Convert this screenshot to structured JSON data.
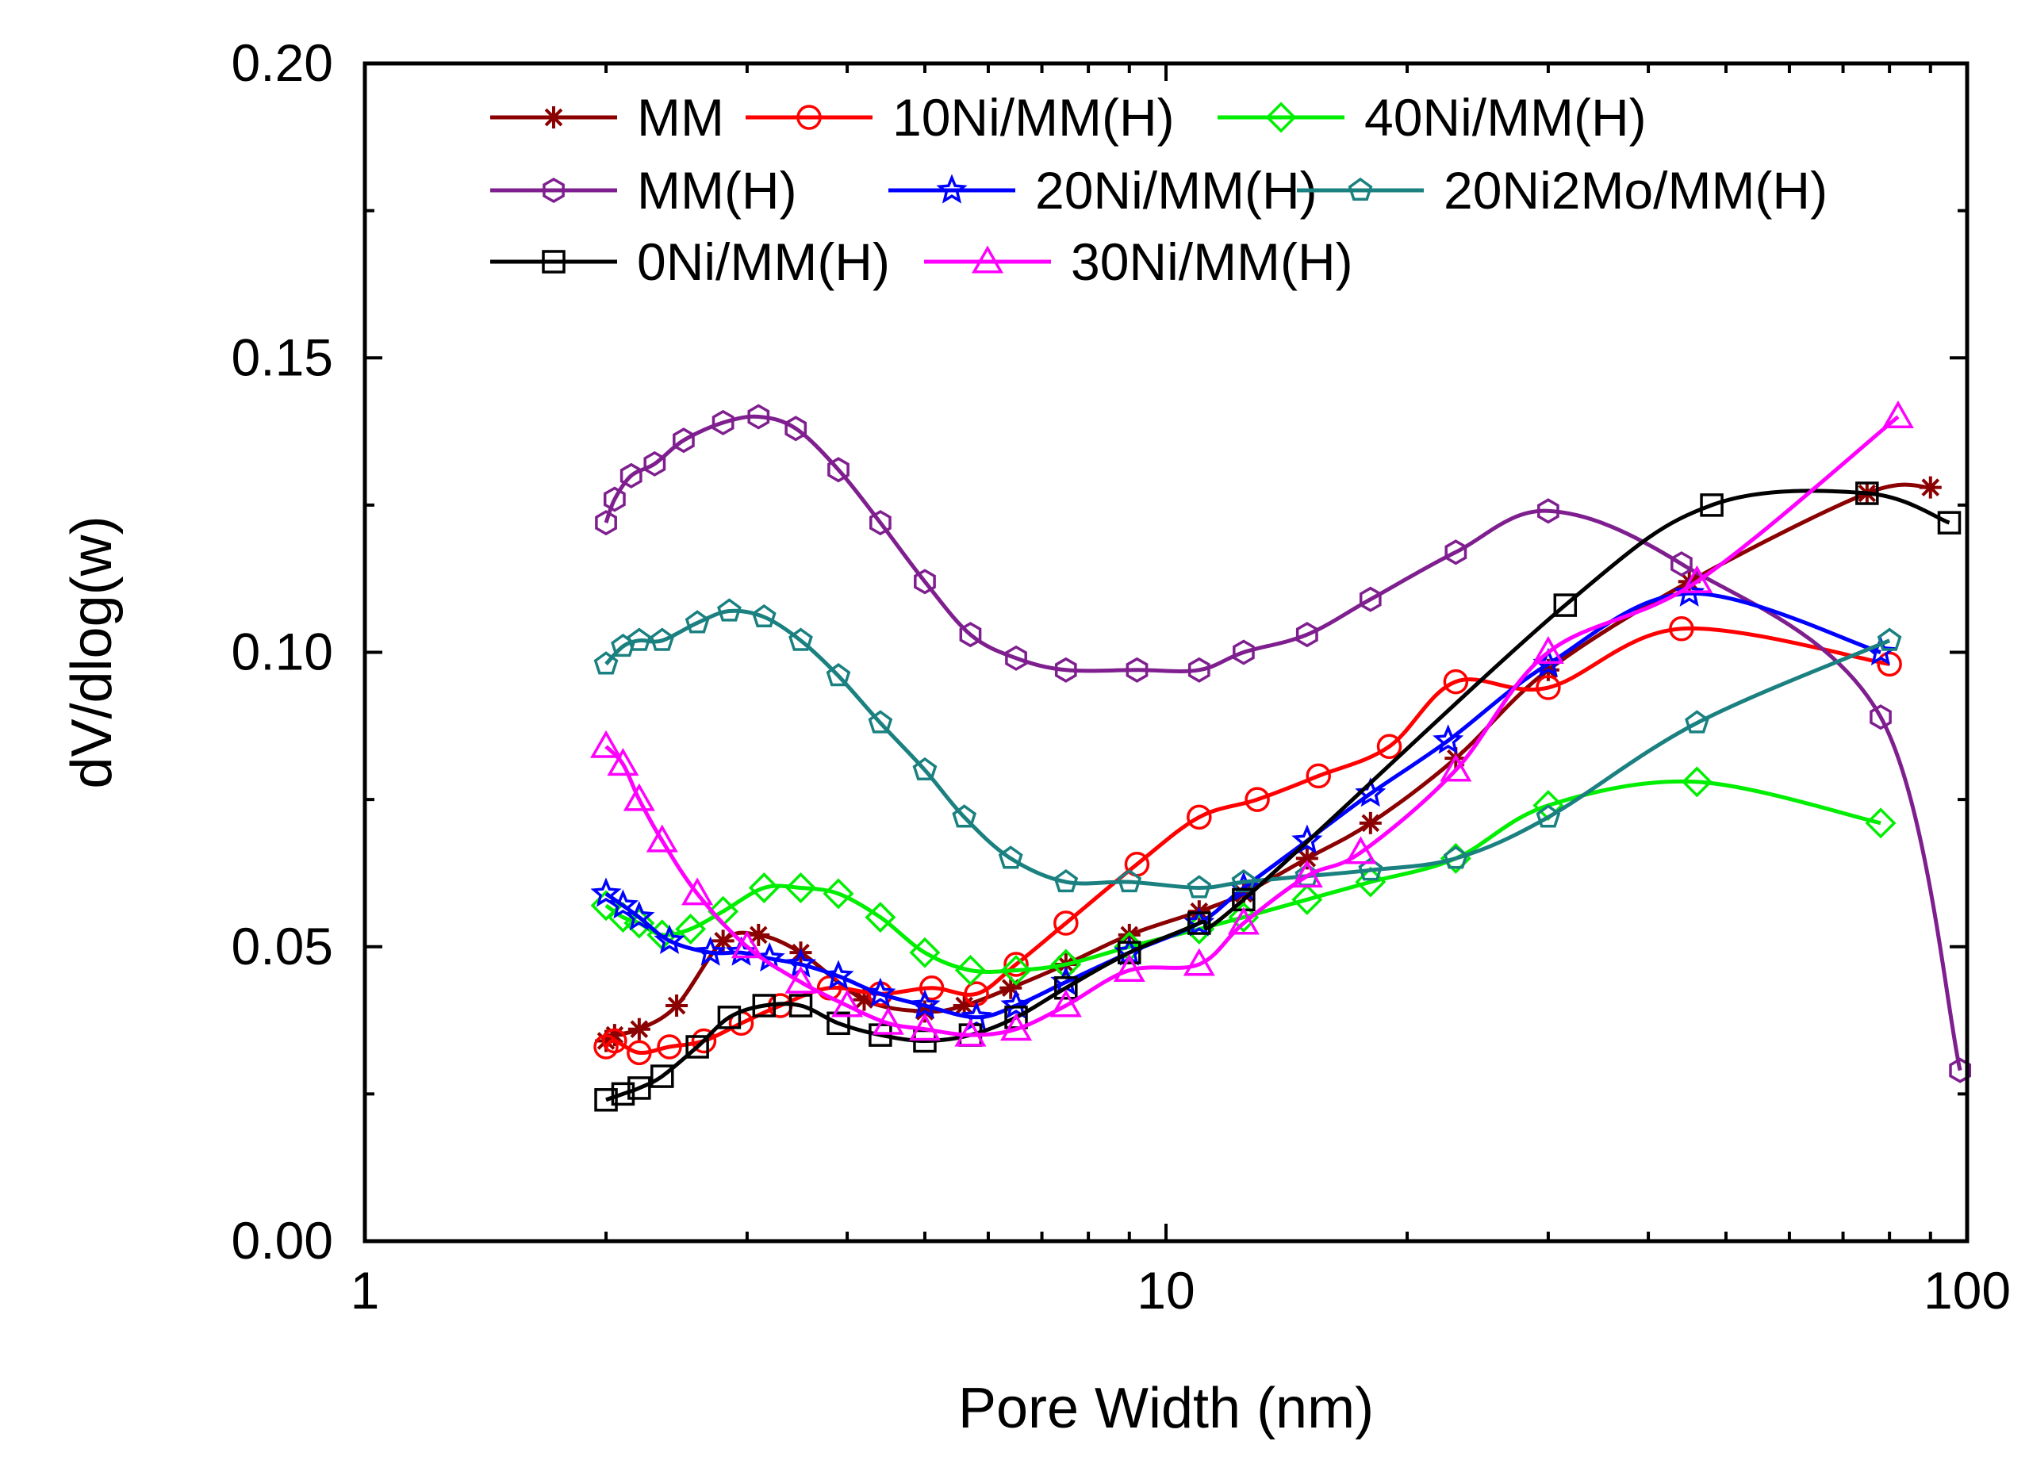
{
  "chart_data": {
    "type": "line",
    "title": "",
    "xlabel": "Pore Width (nm)",
    "ylabel": "dV/dlog(w)",
    "xscale": "log",
    "xlim": [
      1,
      100
    ],
    "ylim": [
      0,
      0.2
    ],
    "x_ticks": [
      "1",
      "10",
      "100"
    ],
    "y_ticks": [
      "0.00",
      "0.05",
      "0.10",
      "0.15",
      "0.20"
    ],
    "grid": false,
    "legend_position": "top",
    "series": [
      {
        "name": "MM",
        "color": "#8B0000",
        "marker": "asterisk",
        "x": [
          2.0,
          2.05,
          2.2,
          2.45,
          2.8,
          3.1,
          3.5,
          4.2,
          5.0,
          5.6,
          6.4,
          7.5,
          9.0,
          11.0,
          12.5,
          15.0,
          18.0,
          23.0,
          30.0,
          45.0,
          75.0,
          90.0
        ],
        "y": [
          0.034,
          0.035,
          0.036,
          0.04,
          0.051,
          0.052,
          0.049,
          0.041,
          0.039,
          0.04,
          0.043,
          0.047,
          0.052,
          0.056,
          0.059,
          0.065,
          0.071,
          0.082,
          0.097,
          0.112,
          0.127,
          0.128
        ]
      },
      {
        "name": "10Ni/MM(H)",
        "color": "#FF0000",
        "marker": "circle",
        "x": [
          2.0,
          2.05,
          2.2,
          2.4,
          2.65,
          2.95,
          3.3,
          3.8,
          4.4,
          5.1,
          5.8,
          6.5,
          7.5,
          9.2,
          11.0,
          13.0,
          15.5,
          19.0,
          23.0,
          30.0,
          44.0,
          80.0
        ],
        "y": [
          0.033,
          0.034,
          0.032,
          0.033,
          0.034,
          0.037,
          0.04,
          0.043,
          0.042,
          0.043,
          0.042,
          0.047,
          0.054,
          0.064,
          0.072,
          0.075,
          0.079,
          0.084,
          0.095,
          0.094,
          0.104,
          0.098
        ]
      },
      {
        "name": "40Ni/MM(H)",
        "color": "#00EE00",
        "marker": "diamond",
        "x": [
          2.0,
          2.1,
          2.2,
          2.35,
          2.55,
          2.8,
          3.15,
          3.5,
          3.9,
          4.4,
          5.0,
          5.7,
          6.5,
          7.5,
          9.0,
          11.0,
          12.5,
          15.0,
          18.0,
          23.0,
          30.0,
          46.0,
          78.0
        ],
        "y": [
          0.057,
          0.055,
          0.054,
          0.052,
          0.053,
          0.056,
          0.06,
          0.06,
          0.059,
          0.055,
          0.049,
          0.046,
          0.046,
          0.047,
          0.05,
          0.053,
          0.055,
          0.058,
          0.061,
          0.065,
          0.074,
          0.078,
          0.071
        ]
      },
      {
        "name": "MM(H)",
        "color": "#7F1F8F",
        "marker": "hexagon",
        "x": [
          2.0,
          2.05,
          2.15,
          2.3,
          2.5,
          2.8,
          3.1,
          3.45,
          3.9,
          4.4,
          5.0,
          5.7,
          6.5,
          7.5,
          9.2,
          11.0,
          12.5,
          15.0,
          18.0,
          23.0,
          30.0,
          44.0,
          78.0,
          98.0
        ],
        "y": [
          0.122,
          0.126,
          0.13,
          0.132,
          0.136,
          0.139,
          0.14,
          0.138,
          0.131,
          0.122,
          0.112,
          0.103,
          0.099,
          0.097,
          0.097,
          0.097,
          0.1,
          0.103,
          0.109,
          0.117,
          0.124,
          0.115,
          0.089,
          0.029
        ]
      },
      {
        "name": "20Ni/MM(H)",
        "color": "#0000FF",
        "marker": "star",
        "x": [
          2.0,
          2.1,
          2.2,
          2.4,
          2.7,
          2.95,
          3.2,
          3.5,
          3.9,
          4.4,
          5.0,
          5.8,
          6.5,
          7.5,
          9.0,
          11.0,
          12.5,
          15.0,
          18.0,
          22.5,
          30.0,
          45.0,
          78.0
        ],
        "y": [
          0.059,
          0.057,
          0.055,
          0.051,
          0.049,
          0.049,
          0.048,
          0.047,
          0.045,
          0.042,
          0.04,
          0.038,
          0.04,
          0.044,
          0.049,
          0.054,
          0.06,
          0.068,
          0.076,
          0.085,
          0.098,
          0.11,
          0.1
        ]
      },
      {
        "name": "20Ni2Mo/MM(H)",
        "color": "#1A8080",
        "marker": "pentagon",
        "x": [
          2.0,
          2.1,
          2.2,
          2.35,
          2.6,
          2.85,
          3.15,
          3.5,
          3.9,
          4.4,
          5.0,
          5.6,
          6.4,
          7.5,
          9.0,
          11.0,
          12.5,
          15.0,
          18.0,
          23.0,
          30.0,
          46.0,
          80.0
        ],
        "y": [
          0.098,
          0.101,
          0.102,
          0.102,
          0.105,
          0.107,
          0.106,
          0.102,
          0.096,
          0.088,
          0.08,
          0.072,
          0.065,
          0.061,
          0.061,
          0.06,
          0.061,
          0.062,
          0.063,
          0.065,
          0.072,
          0.088,
          0.102
        ]
      },
      {
        "name": "0Ni/MM(H)",
        "color": "#000000",
        "marker": "square",
        "x": [
          2.0,
          2.1,
          2.2,
          2.35,
          2.6,
          2.85,
          3.15,
          3.5,
          3.9,
          4.4,
          5.0,
          5.7,
          6.5,
          7.5,
          9.0,
          11.0,
          12.5,
          31.5,
          48.0,
          75.0,
          95.0
        ],
        "y": [
          0.024,
          0.025,
          0.026,
          0.028,
          0.033,
          0.038,
          0.04,
          0.04,
          0.037,
          0.035,
          0.034,
          0.035,
          0.038,
          0.043,
          0.049,
          0.054,
          0.058,
          0.108,
          0.125,
          0.127,
          0.122
        ]
      },
      {
        "name": "30Ni/MM(H)",
        "color": "#FF00FF",
        "marker": "triangle",
        "x": [
          2.0,
          2.1,
          2.2,
          2.35,
          2.6,
          3.0,
          3.5,
          4.0,
          4.5,
          5.0,
          5.7,
          6.5,
          7.5,
          9.0,
          11.0,
          12.5,
          15.0,
          17.5,
          23.0,
          30.0,
          46.0,
          82.0
        ],
        "y": [
          0.084,
          0.081,
          0.075,
          0.068,
          0.059,
          0.05,
          0.044,
          0.04,
          0.037,
          0.036,
          0.035,
          0.036,
          0.04,
          0.046,
          0.047,
          0.054,
          0.062,
          0.066,
          0.08,
          0.1,
          0.112,
          0.14
        ]
      }
    ]
  }
}
